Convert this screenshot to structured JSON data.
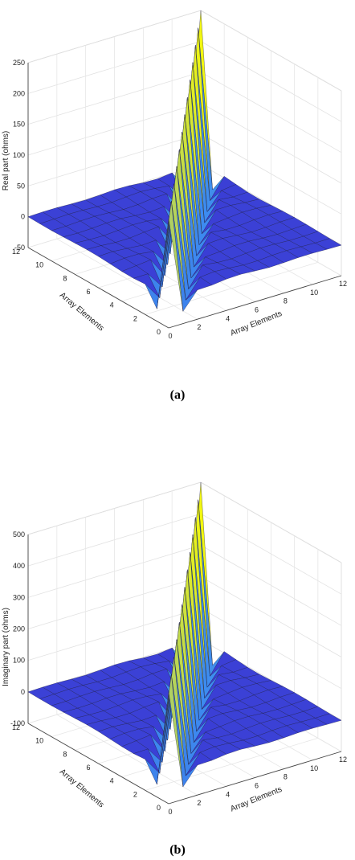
{
  "chart_data": [
    {
      "type": "surface3d",
      "caption": "(a)",
      "xlabel": "Array Elements",
      "ylabel": "Array Elements",
      "zlabel": "Real part (ohms)",
      "xlim": [
        0,
        12
      ],
      "ylim": [
        0,
        12
      ],
      "zlim": [
        -50,
        250
      ],
      "xticks": [
        "0",
        "2",
        "4",
        "6",
        "8",
        "10",
        "12"
      ],
      "yticks": [
        "0",
        "2",
        "4",
        "6",
        "8",
        "10",
        "12"
      ],
      "zticks": [
        "-50",
        "0",
        "50",
        "100",
        "150",
        "200",
        "250"
      ],
      "grid": true,
      "colormap": [
        "#3a2fd0",
        "#3d8cf0",
        "#ffff00"
      ],
      "peak_value": 245,
      "diagonal_min_value": -30,
      "offdiag_ripple": 4,
      "diagonal_width": 1
    },
    {
      "type": "surface3d",
      "caption": "(b)",
      "xlabel": "Array Elements",
      "ylabel": "Array Elements",
      "zlabel": "Imaginary part (ohms)",
      "xlim": [
        0,
        12
      ],
      "ylim": [
        0,
        12
      ],
      "zlim": [
        -100,
        500
      ],
      "xticks": [
        "0",
        "2",
        "4",
        "6",
        "8",
        "10",
        "12"
      ],
      "yticks": [
        "0",
        "2",
        "4",
        "6",
        "8",
        "10",
        "12"
      ],
      "zticks": [
        "-100",
        "0",
        "100",
        "200",
        "300",
        "400",
        "500"
      ],
      "grid": true,
      "colormap": [
        "#3a2fd0",
        "#3d8cf0",
        "#ffff00"
      ],
      "peak_value": 490,
      "diagonal_min_value": -60,
      "offdiag_ripple": 8,
      "diagonal_width": 1
    }
  ]
}
